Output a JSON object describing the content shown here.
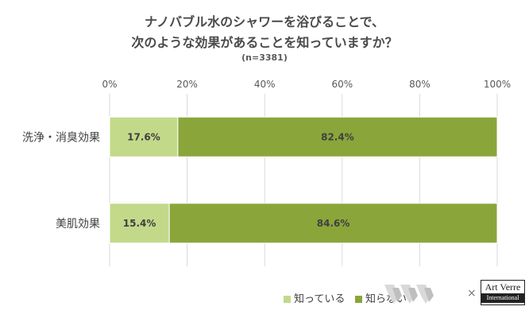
{
  "chart_data": {
    "type": "bar",
    "orientation": "horizontal",
    "stacked": true,
    "title_line1": "ナノバブル水のシャワーを浴びることで、",
    "title_line2": "次のような効果があることを知っていますか？",
    "subtitle": "(n=3381)",
    "categories": [
      "洗浄・消臭効果",
      "美肌効果"
    ],
    "series": [
      {
        "name": "知っている",
        "values": [
          17.6,
          15.4
        ],
        "labels": [
          "17.6%",
          "15.4%"
        ],
        "color": "#c3d98a"
      },
      {
        "name": "知らない",
        "values": [
          82.4,
          84.6
        ],
        "labels": [
          "82.4%",
          "84.6%"
        ],
        "color": "#8aa63a"
      }
    ],
    "xlim": [
      0,
      100
    ],
    "xticks": [
      "0%",
      "20%",
      "40%",
      "60%",
      "80%",
      "100%"
    ],
    "grid": true,
    "gridColor": "#d9d9d9",
    "legend_position": "bottom"
  },
  "footer": {
    "times": "×",
    "artverre_main": "Art Verre",
    "artverre_sub": "International"
  }
}
